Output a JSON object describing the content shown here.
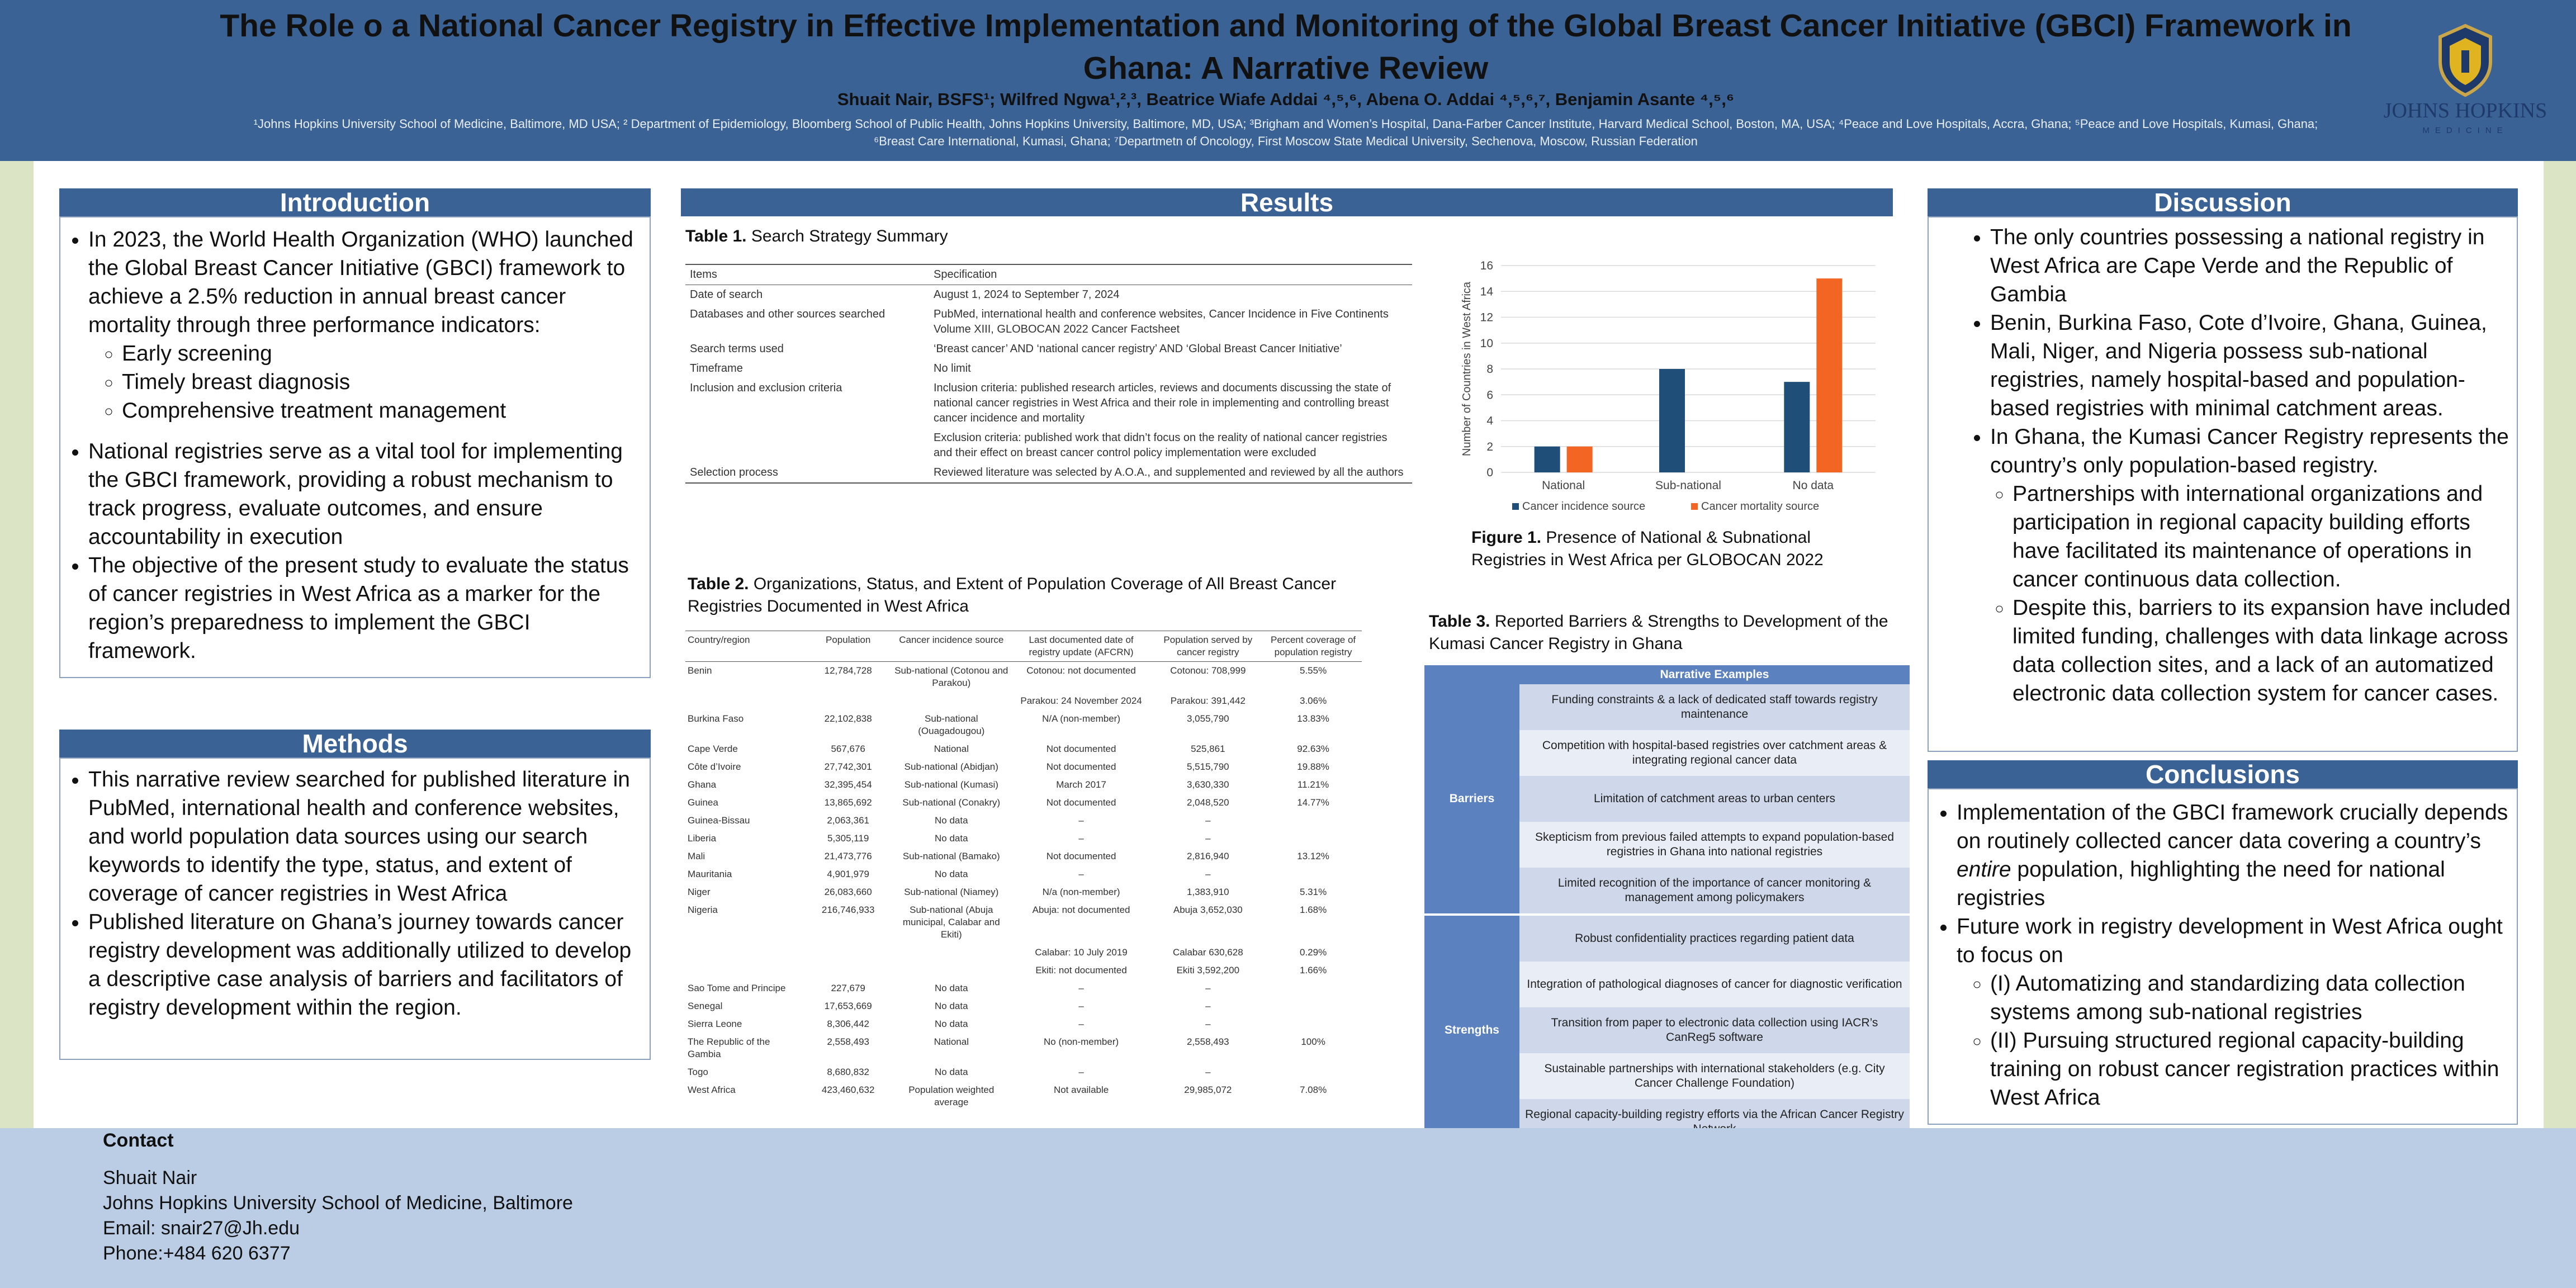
{
  "header": {
    "title_line1": "The Role o a National Cancer Registry in Effective Implementation and Monitoring of the Global Breast Cancer Initiative (GBCI) Framework in",
    "title_line2": "Ghana: A Narrative Review",
    "authors": "Shuait Nair, BSFS¹; Wilfred Ngwa¹,²,³, Beatrice Wiafe Addai ⁴,⁵,⁶, Abena O. Addai ⁴,⁵,⁶,⁷, Benjamin Asante ⁴,⁵,⁶",
    "affiliations": "¹Johns Hopkins University School of Medicine, Baltimore, MD USA; ² Department of Epidemiology, Bloomberg School of Public Health, Johns Hopkins University, Baltimore, MD, USA; ³Brigham and Women’s Hospital, Dana-Farber Cancer Institute, Harvard Medical School, Boston, MA, USA; ⁴Peace and Love Hospitals, Accra, Ghana; ⁵Peace and Love Hospitals, Kumasi, Ghana; ⁶Breast Care International, Kumasi, Ghana; ⁷Departmetn of Oncology, First Moscow State Medical University, Sechenova, Moscow, Russian Federation",
    "logo_text": "JOHNS HOPKINS",
    "logo_sub": "MEDICINE"
  },
  "introduction": {
    "heading": "Introduction",
    "p1": "In 2023, the World Health Organization (WHO) launched the Global Breast Cancer Initiative (GBCI) framework to achieve a 2.5% reduction in annual breast cancer mortality through three performance indicators:",
    "sub": [
      "Early screening",
      "Timely breast diagnosis",
      "Comprehensive treatment management"
    ],
    "p2": "National registries serve as a vital tool for implementing the GBCI framework, providing a robust mechanism to track progress, evaluate outcomes, and ensure accountability in execution",
    "p3": "The objective of the present study to evaluate the status of cancer registries in West Africa as a marker for the region’s preparedness to implement the GBCI framework."
  },
  "methods": {
    "heading": "Methods",
    "p1": "This narrative review searched for published literature in PubMed, international health and conference websites, and world population data sources using our search keywords to identify the type, status, and extent of coverage of cancer registries in West Africa",
    "p2": "Published literature on Ghana’s journey towards cancer registry development was additionally utilized to develop a descriptive case analysis of barriers and facilitators of registry development within the region."
  },
  "results": {
    "heading": "Results",
    "table1": {
      "caption_bold": "Table 1.",
      "caption": " Search Strategy Summary",
      "headers": [
        "Items",
        "Specification"
      ],
      "rows": [
        [
          "Date of search",
          "August 1, 2024 to September 7, 2024"
        ],
        [
          "Databases and other sources searched",
          "PubMed, international health and conference websites, Cancer Incidence in Five Continents Volume XIII, GLOBOCAN 2022 Cancer Factsheet"
        ],
        [
          "Search terms used",
          "‘Breast cancer’ AND ‘national cancer registry’ AND ‘Global Breast Cancer Initiative’"
        ],
        [
          "Timeframe",
          "No limit"
        ],
        [
          "Inclusion and exclusion criteria",
          "Inclusion criteria: published research articles, reviews and documents discussing the state of national cancer registries in West Africa and their role in implementing and controlling breast cancer incidence and mortality"
        ],
        [
          "",
          "Exclusion criteria: published work that didn’t focus on the reality of national cancer registries and their effect on breast cancer control policy implementation were excluded"
        ],
        [
          "Selection process",
          "Reviewed literature was selected by A.O.A., and supplemented and reviewed by all the authors"
        ]
      ]
    },
    "table2": {
      "caption_bold": "Table 2.",
      "caption": " Organizations, Status, and Extent of Population Coverage of All Breast Cancer Registries Documented in West Africa",
      "headers": [
        "Country/region",
        "Population",
        "Cancer incidence source",
        "Last documented date of registry update (AFCRN)",
        "Population served by cancer registry",
        "Percent coverage of population registry"
      ],
      "rows": [
        [
          "Benin",
          "12,784,728",
          "Sub-national (Cotonou and Parakou)",
          "Cotonou: not documented",
          "Cotonou: 708,999",
          "5.55%"
        ],
        [
          "",
          "",
          "",
          "Parakou: 24 November 2024",
          "Parakou: 391,442",
          "3.06%"
        ],
        [
          "Burkina Faso",
          "22,102,838",
          "Sub-national (Ouagadougou)",
          "N/A (non-member)",
          "3,055,790",
          "13.83%"
        ],
        [
          "Cape Verde",
          "567,676",
          "National",
          "Not documented",
          "525,861",
          "92.63%"
        ],
        [
          "Côte d’Ivoire",
          "27,742,301",
          "Sub-national (Abidjan)",
          "Not documented",
          "5,515,790",
          "19.88%"
        ],
        [
          "Ghana",
          "32,395,454",
          "Sub-national (Kumasi)",
          "March 2017",
          "3,630,330",
          "11.21%"
        ],
        [
          "Guinea",
          "13,865,692",
          "Sub-national (Conakry)",
          "Not documented",
          "2,048,520",
          "14.77%"
        ],
        [
          "Guinea-Bissau",
          "2,063,361",
          "No data",
          "–",
          "–",
          ""
        ],
        [
          "Liberia",
          "5,305,119",
          "No data",
          "–",
          "–",
          ""
        ],
        [
          "Mali",
          "21,473,776",
          "Sub-national (Bamako)",
          "Not documented",
          "2,816,940",
          "13.12%"
        ],
        [
          "Mauritania",
          "4,901,979",
          "No data",
          "–",
          "–",
          ""
        ],
        [
          "Niger",
          "26,083,660",
          "Sub-national (Niamey)",
          "N/a (non-member)",
          "1,383,910",
          "5.31%"
        ],
        [
          "Nigeria",
          "216,746,933",
          "Sub-national (Abuja municipal, Calabar and Ekiti)",
          "Abuja: not documented",
          "Abuja 3,652,030",
          "1.68%"
        ],
        [
          "",
          "",
          "",
          "Calabar: 10 July 2019",
          "Calabar 630,628",
          "0.29%"
        ],
        [
          "",
          "",
          "",
          "Ekiti: not documented",
          "Ekiti 3,592,200",
          "1.66%"
        ],
        [
          "Sao Tome and Principe",
          "227,679",
          "No data",
          "–",
          "–",
          ""
        ],
        [
          "Senegal",
          "17,653,669",
          "No data",
          "–",
          "–",
          ""
        ],
        [
          "Sierra Leone",
          "8,306,442",
          "No data",
          "–",
          "–",
          ""
        ],
        [
          "The Republic of the Gambia",
          "2,558,493",
          "National",
          "No (non-member)",
          "2,558,493",
          "100%"
        ],
        [
          "Togo",
          "8,680,832",
          "No data",
          "–",
          "–",
          ""
        ],
        [
          "West Africa",
          "423,460,632",
          "Population weighted average",
          "Not available",
          "29,985,072",
          "7.08%"
        ]
      ]
    },
    "figure1": {
      "caption_bold": "Figure 1.",
      "caption": " Presence of National & Subnational Registries in West Africa per GLOBOCAN 2022"
    },
    "table3": {
      "caption_bold": "Table 3.",
      "caption": " Reported Barriers & Strengths to Development of the Kumasi Cancer Registry in Ghana",
      "header": "Narrative Examples",
      "barriers_label": "Barriers",
      "strengths_label": "Strengths",
      "barriers": [
        "Funding constraints & a lack of dedicated staff towards registry maintenance",
        "Competition with hospital-based registries over catchment areas & integrating regional cancer data",
        "Limitation of catchment areas to urban centers",
        "Skepticism from previous failed attempts to expand population-based registries in Ghana into national registries",
        "Limited recognition of the importance of cancer monitoring & management among policymakers"
      ],
      "strengths": [
        "Robust confidentiality practices regarding patient data",
        "Integration of pathological diagnoses of cancer for diagnostic verification",
        "Transition from paper to electronic data collection using IACR’s CanReg5 software",
        "Sustainable partnerships with international stakeholders (e.g. City Cancer Challenge Foundation)",
        "Regional capacity-building registry efforts via the African Cancer Registry Network"
      ]
    }
  },
  "chart_data": {
    "type": "bar",
    "title": "",
    "xlabel": "",
    "ylabel": "Number of Countries in West Africa",
    "categories": [
      "National",
      "Sub-national",
      "No data"
    ],
    "series": [
      {
        "name": "Cancer incidence source",
        "values": [
          2,
          8,
          7
        ],
        "color": "#1f4e79"
      },
      {
        "name": "Cancer mortality source",
        "values": [
          2,
          0,
          15
        ],
        "color": "#f26522"
      }
    ],
    "ylim": [
      0,
      16
    ],
    "yticks": [
      "0",
      "2",
      "4",
      "6",
      "8",
      "10",
      "12",
      "14",
      "16"
    ],
    "legend": "bottom",
    "grid": true
  },
  "discussion": {
    "heading": "Discussion",
    "p1": "The only countries possessing a national registry in West Africa are Cape Verde and the Republic of Gambia",
    "p2": "Benin, Burkina Faso, Cote d’Ivoire, Ghana, Guinea, Mali, Niger, and Nigeria possess sub-national registries, namely hospital-based and population-based registries with minimal catchment areas.",
    "p3": "In Ghana, the Kumasi Cancer Registry represents the country’s only population-based registry.",
    "sub1": "Partnerships with international organizations and participation in regional capacity building efforts have facilitated its maintenance of operations in cancer continuous data collection.",
    "sub2": "Despite this, barriers to its expansion have included limited funding, challenges with data linkage across data collection sites, and a lack of an automatized electronic data collection system for cancer cases."
  },
  "conclusions": {
    "heading": "Conclusions",
    "p1_a": "Implementation of the GBCI framework crucially depends on routinely collected cancer data covering a country’s ",
    "p1_em": "entire",
    "p1_b": " population, highlighting the need for national registries",
    "p2": "Future work in registry development in West Africa ought to focus on",
    "sub1": "(I) Automatizing and standardizing data collection systems among sub-national registries",
    "sub2": "(II) Pursuing structured regional capacity-building training on robust cancer registration practices within West Africa"
  },
  "contact": {
    "heading": "Contact",
    "name": "Shuait Nair",
    "org": "Johns Hopkins University School of Medicine, Baltimore",
    "email": "Email: snair27@Jh.edu",
    "phone": "Phone:+484 620 6377"
  }
}
